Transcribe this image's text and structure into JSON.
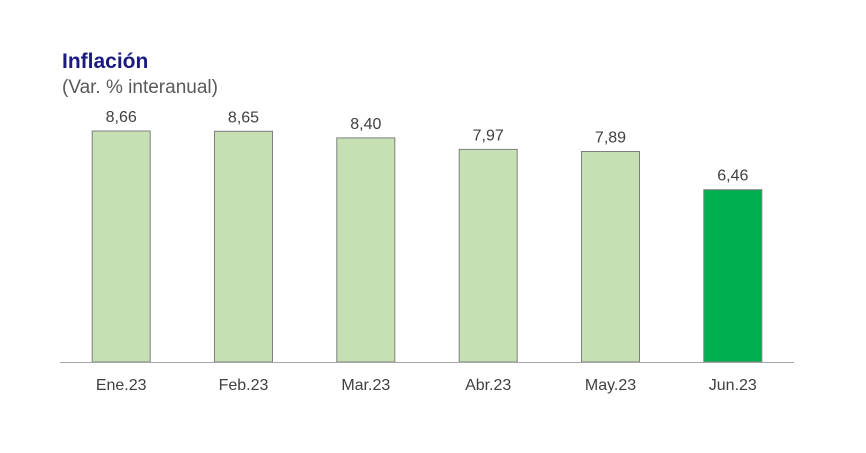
{
  "chart_data": {
    "type": "bar",
    "title": "Inflación",
    "subtitle": "(Var. % interanual)",
    "categories": [
      "Ene.23",
      "Feb.23",
      "Mar.23",
      "Abr.23",
      "May.23",
      "Jun.23"
    ],
    "values": [
      8.66,
      8.65,
      8.4,
      7.97,
      7.89,
      6.46
    ],
    "value_labels": [
      "8,66",
      "8,65",
      "8,40",
      "7,97",
      "7,89",
      "6,46"
    ],
    "ylim": [
      0,
      8.66
    ],
    "grid": false,
    "legend": "none",
    "colors": {
      "bar": "#c6e0b4",
      "bar_highlight": "#00b050",
      "bar_border": "#7f7f7f",
      "axis": "#a6a6a6",
      "title": "#1a1a80",
      "text": "#404040"
    },
    "highlight_index": 5
  }
}
